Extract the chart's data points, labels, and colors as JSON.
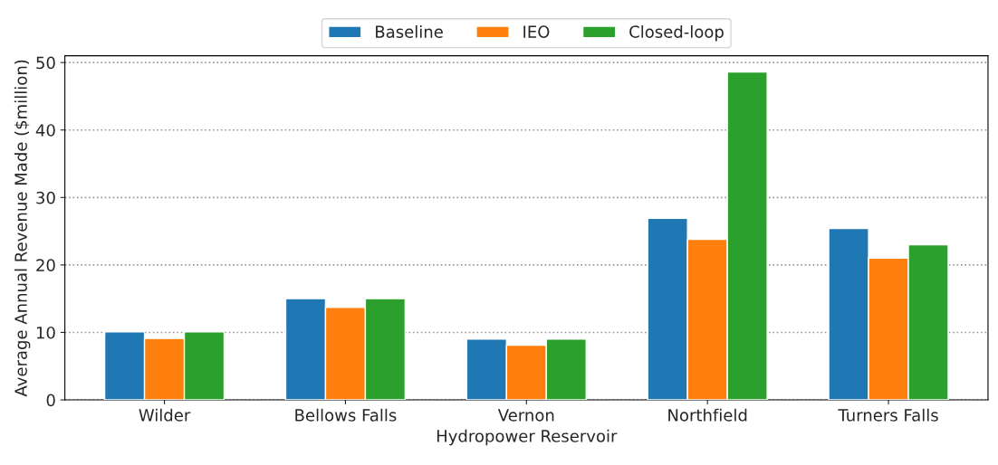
{
  "chart_data": {
    "type": "bar",
    "xlabel": "Hydropower Reservoir",
    "ylabel": "Average Annual Revenue Made ($million)",
    "categories": [
      "Wilder",
      "Bellows Falls",
      "Vernon",
      "Northfield",
      "Turners Falls"
    ],
    "series": [
      {
        "name": "Baseline",
        "color": "#1f77b4",
        "values": [
          10.1,
          15.0,
          9.0,
          26.9,
          25.4
        ]
      },
      {
        "name": "IEO",
        "color": "#ff7f0e",
        "values": [
          9.1,
          13.7,
          8.1,
          23.8,
          21.0
        ]
      },
      {
        "name": "Closed-loop",
        "color": "#2ca02c",
        "values": [
          10.1,
          15.0,
          9.0,
          48.6,
          23.0
        ]
      }
    ],
    "ylim": [
      0,
      51
    ],
    "yticks": [
      0,
      10,
      20,
      30,
      40,
      50
    ],
    "grid": "y",
    "legend": "top"
  }
}
